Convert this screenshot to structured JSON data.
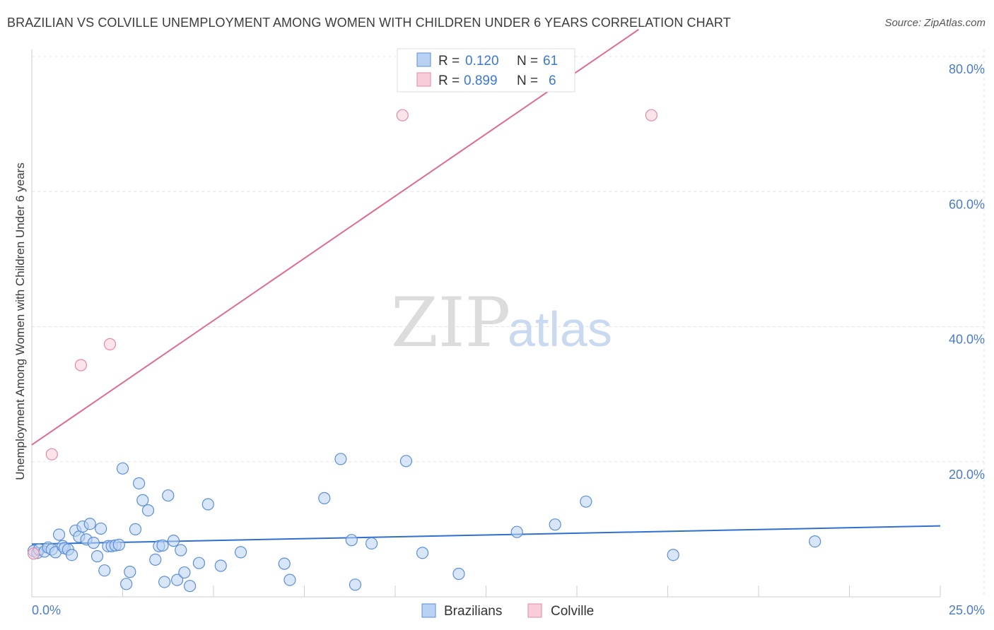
{
  "chart_data": {
    "type": "scatter",
    "title": "BRAZILIAN VS COLVILLE UNEMPLOYMENT AMONG WOMEN WITH CHILDREN UNDER 6 YEARS CORRELATION CHART",
    "source": "Source: ZipAtlas.com",
    "xlabel": "",
    "ylabel": "Unemployment Among Women with Children Under 6 years",
    "xlim": [
      0,
      25
    ],
    "ylim": [
      0,
      84
    ],
    "x_tick_labels": [
      {
        "value": 0,
        "label": "0.0%"
      },
      {
        "value": 25,
        "label": "25.0%"
      }
    ],
    "y_tick_labels": [
      {
        "value": 20,
        "label": "20.0%"
      },
      {
        "value": 40,
        "label": "40.0%"
      },
      {
        "value": 60,
        "label": "60.0%"
      },
      {
        "value": 80,
        "label": "80.0%"
      }
    ],
    "grid": true,
    "watermark": {
      "zip": "ZIP",
      "atlas": "atlas"
    },
    "stats_legend": [
      {
        "series": "Brazilians",
        "r_label": "R =",
        "r": "0.120",
        "n_label": "N =",
        "n": "61"
      },
      {
        "series": "Colville",
        "r_label": "R =",
        "r": "0.899",
        "n_label": "N =",
        "n": "6"
      }
    ],
    "series": [
      {
        "name": "Brazilians",
        "color": "#5b8fd9",
        "fill": "#b9d1f2",
        "trend_color": "#2f6fd0",
        "trend": {
          "x0": 0,
          "y0": 7.8,
          "x1": 25,
          "y1": 10.5
        },
        "points": [
          [
            0.05,
            6.8
          ],
          [
            0.15,
            6.5
          ],
          [
            0.2,
            7.0
          ],
          [
            0.35,
            6.7
          ],
          [
            0.45,
            7.3
          ],
          [
            0.55,
            7.0
          ],
          [
            0.65,
            6.6
          ],
          [
            0.75,
            9.2
          ],
          [
            0.85,
            7.5
          ],
          [
            0.9,
            7.2
          ],
          [
            1.0,
            7.0
          ],
          [
            1.1,
            6.2
          ],
          [
            1.2,
            9.8
          ],
          [
            1.3,
            8.9
          ],
          [
            1.4,
            10.4
          ],
          [
            1.5,
            8.5
          ],
          [
            1.6,
            10.8
          ],
          [
            1.7,
            8.0
          ],
          [
            1.8,
            6.0
          ],
          [
            1.9,
            10.1
          ],
          [
            2.0,
            3.9
          ],
          [
            2.1,
            7.5
          ],
          [
            2.2,
            7.5
          ],
          [
            2.3,
            7.6
          ],
          [
            2.4,
            7.7
          ],
          [
            2.5,
            19.0
          ],
          [
            2.6,
            1.9
          ],
          [
            2.7,
            3.7
          ],
          [
            2.85,
            10.0
          ],
          [
            2.95,
            16.8
          ],
          [
            3.05,
            14.3
          ],
          [
            3.2,
            12.8
          ],
          [
            3.4,
            5.5
          ],
          [
            3.5,
            7.5
          ],
          [
            3.6,
            7.6
          ],
          [
            3.65,
            2.2
          ],
          [
            3.75,
            15.0
          ],
          [
            3.9,
            8.3
          ],
          [
            4.0,
            2.5
          ],
          [
            4.1,
            6.9
          ],
          [
            4.2,
            3.6
          ],
          [
            4.35,
            1.6
          ],
          [
            4.6,
            5.0
          ],
          [
            4.85,
            13.7
          ],
          [
            5.2,
            4.6
          ],
          [
            5.75,
            6.6
          ],
          [
            6.95,
            4.9
          ],
          [
            7.1,
            2.5
          ],
          [
            8.05,
            14.6
          ],
          [
            8.5,
            20.4
          ],
          [
            8.8,
            8.4
          ],
          [
            8.9,
            1.8
          ],
          [
            9.35,
            7.9
          ],
          [
            10.3,
            20.1
          ],
          [
            10.75,
            6.5
          ],
          [
            11.75,
            3.4
          ],
          [
            13.35,
            9.6
          ],
          [
            14.4,
            10.7
          ],
          [
            15.25,
            14.1
          ],
          [
            17.65,
            6.2
          ],
          [
            21.55,
            8.2
          ]
        ]
      },
      {
        "name": "Colville",
        "color": "#e48aa5",
        "fill": "#f8cdd9",
        "trend_color": "#e06b92",
        "trend": {
          "x0": 0,
          "y0": 22.5,
          "x1": 16.7,
          "y1": 84
        },
        "points": [
          [
            0.55,
            21.1
          ],
          [
            1.35,
            34.3
          ],
          [
            2.15,
            37.4
          ],
          [
            10.2,
            71.3
          ],
          [
            17.05,
            71.3
          ],
          [
            0.05,
            6.4
          ]
        ]
      }
    ],
    "bottom_legend": [
      "Brazilians",
      "Colville"
    ]
  }
}
